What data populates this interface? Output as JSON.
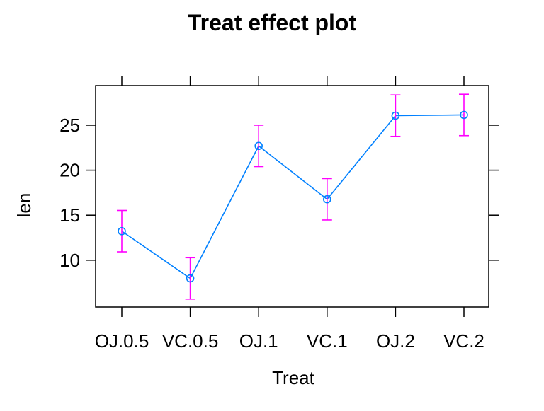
{
  "chart_data": {
    "type": "line",
    "title": "Treat effect plot",
    "xlabel": "Treat",
    "ylabel": "len",
    "categories": [
      "OJ.0.5",
      "VC.0.5",
      "OJ.1",
      "VC.1",
      "OJ.2",
      "VC.2"
    ],
    "series": [
      {
        "values": [
          13.23,
          7.98,
          22.7,
          16.77,
          26.06,
          26.14
        ],
        "lower": [
          10.93,
          5.68,
          20.4,
          14.47,
          23.76,
          23.84
        ],
        "upper": [
          15.53,
          10.28,
          25.0,
          19.07,
          28.36,
          28.44
        ]
      }
    ],
    "yticks": [
      10,
      15,
      20,
      25
    ],
    "ylim": [
      4.8,
      29.4
    ],
    "grid": false,
    "colors": {
      "line": "#0080ff",
      "error_bar": "#ff00ff",
      "frame": "#000000"
    }
  }
}
